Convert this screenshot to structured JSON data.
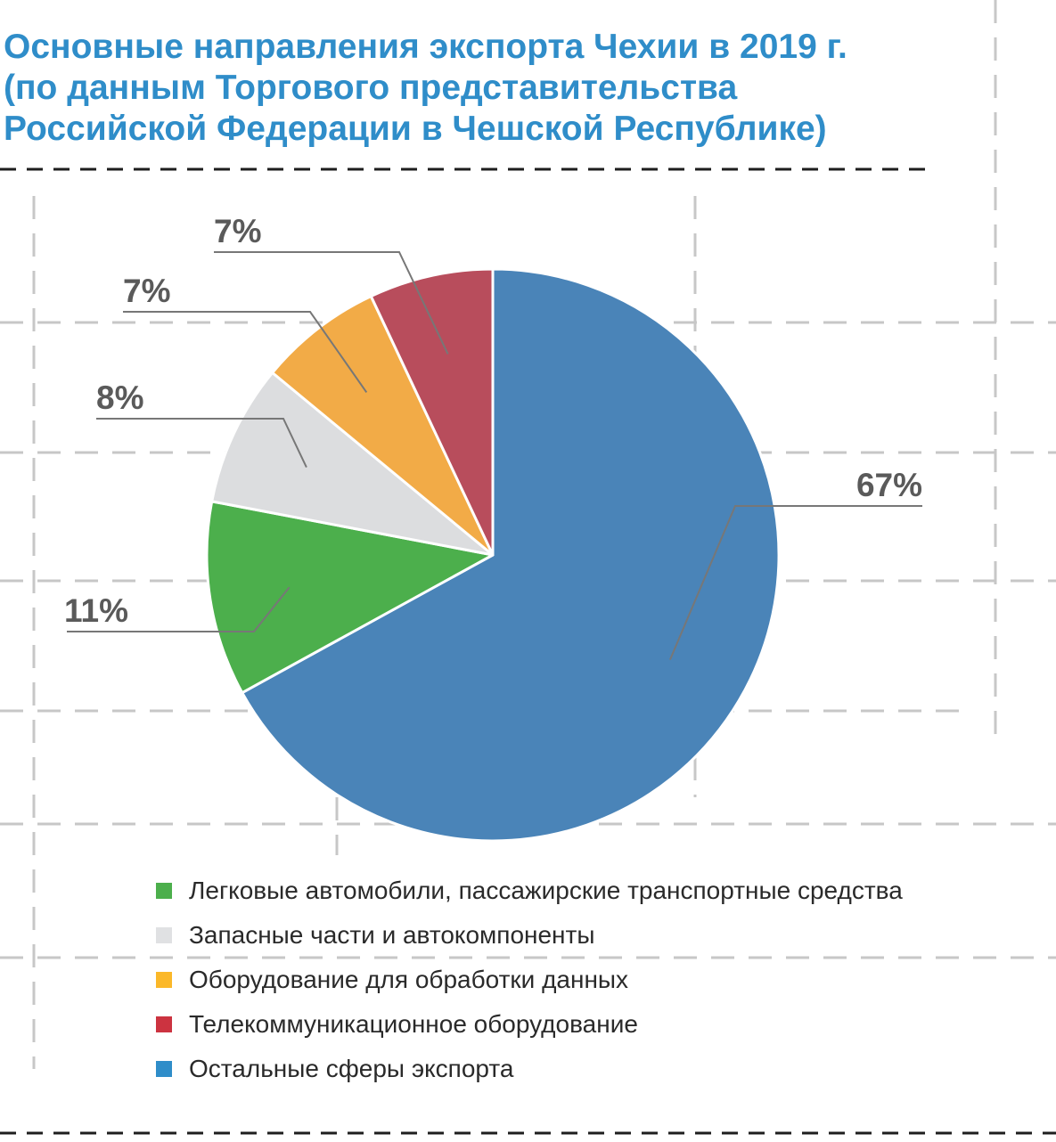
{
  "title_lines": [
    "Основные направления экспорта Чехии в 2019 г.",
    "(по данным Торгового представительства",
    "Российской Федерации в Чешской Республике)"
  ],
  "chart_data": {
    "type": "pie",
    "title": "Основные направления экспорта Чехии в 2019 г. (по данным Торгового представительства Российской Федерации в Чешской Республике)",
    "unit": "%",
    "start": "12 o'clock, clockwise",
    "slices": [
      {
        "label": "Остальные сферы экспорта",
        "value": 67,
        "display": "67%",
        "color": "#4a84b8"
      },
      {
        "label": "Легковые автомобили, пассажирские транспортные средства",
        "value": 11,
        "display": "11%",
        "color": "#4caf4c"
      },
      {
        "label": "Запасные части и автокомпоненты",
        "value": 8,
        "display": "8%",
        "color": "#dcdddf"
      },
      {
        "label": "Оборудование для обработки данных",
        "value": 7,
        "display": "7%",
        "color": "#f2ab47"
      },
      {
        "label": "Телекоммуникационное оборудование",
        "value": 7,
        "display": "7%",
        "color": "#b84d5c"
      }
    ]
  },
  "legend": [
    {
      "label": "Легковые автомобили, пассажирские транспортные средства",
      "color": "#4caf4c"
    },
    {
      "label": "Запасные части и автокомпоненты",
      "color": "#e0e1e3"
    },
    {
      "label": "Оборудование для обработки данных",
      "color": "#fbb829"
    },
    {
      "label": "Телекоммуникационное оборудование",
      "color": "#cc3340"
    },
    {
      "label": "Остальные сферы экспорта",
      "color": "#2f8dc9"
    }
  ],
  "colors": {
    "title": "#2f8dc9",
    "guides": "#c7c7c7",
    "dark_rule": "#1e1e1e",
    "data_label": "#5a5a5a",
    "leader": "#777777"
  }
}
